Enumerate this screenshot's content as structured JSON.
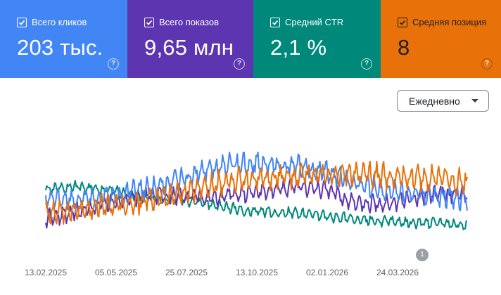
{
  "metrics": [
    {
      "label": "Всего кликов",
      "value": "203 тыс.",
      "color": "#4285f4",
      "checked": true
    },
    {
      "label": "Всего показов",
      "value": "9,65 млн",
      "color": "#5e35b1",
      "checked": true
    },
    {
      "label": "Средний CTR",
      "value": "2,1 %",
      "color": "#00897b",
      "checked": true
    },
    {
      "label": "Средняя позиция",
      "value": "8",
      "color": "#e8710a",
      "checked": true
    }
  ],
  "help_glyph": "?",
  "granularity": {
    "selected": "Ежедневно"
  },
  "annotation": {
    "count": "1"
  },
  "chart_data": {
    "type": "line",
    "x_tick_labels": [
      "13.02.2025",
      "05.05.2025",
      "25.07.2025",
      "13.10.2025",
      "02.01.2026",
      "24.03.2026"
    ],
    "x_range": [
      "2025-02-01",
      "2026-05-01"
    ],
    "y_axis_labels": "none",
    "grid": false,
    "series": [
      {
        "color": "#4285f4",
        "values_relative": [
          0.45,
          0.42,
          0.45,
          0.52,
          0.58,
          0.68,
          0.78,
          0.85,
          0.83,
          0.8,
          0.75,
          0.62,
          0.55,
          0.5,
          0.48,
          0.45
        ]
      },
      {
        "color": "#5e35b1",
        "values_relative": [
          0.22,
          0.3,
          0.38,
          0.45,
          0.48,
          0.47,
          0.46,
          0.5,
          0.55,
          0.58,
          0.55,
          0.4,
          0.38,
          0.45,
          0.5,
          0.48
        ]
      },
      {
        "color": "#00897b",
        "values_relative": [
          0.55,
          0.58,
          0.55,
          0.5,
          0.45,
          0.42,
          0.38,
          0.32,
          0.3,
          0.28,
          0.25,
          0.22,
          0.2,
          0.18,
          0.17,
          0.16
        ]
      },
      {
        "color": "#e8710a",
        "values_relative": [
          0.3,
          0.32,
          0.36,
          0.4,
          0.45,
          0.52,
          0.6,
          0.65,
          0.68,
          0.7,
          0.72,
          0.72,
          0.7,
          0.68,
          0.66,
          0.62
        ]
      }
    ]
  }
}
